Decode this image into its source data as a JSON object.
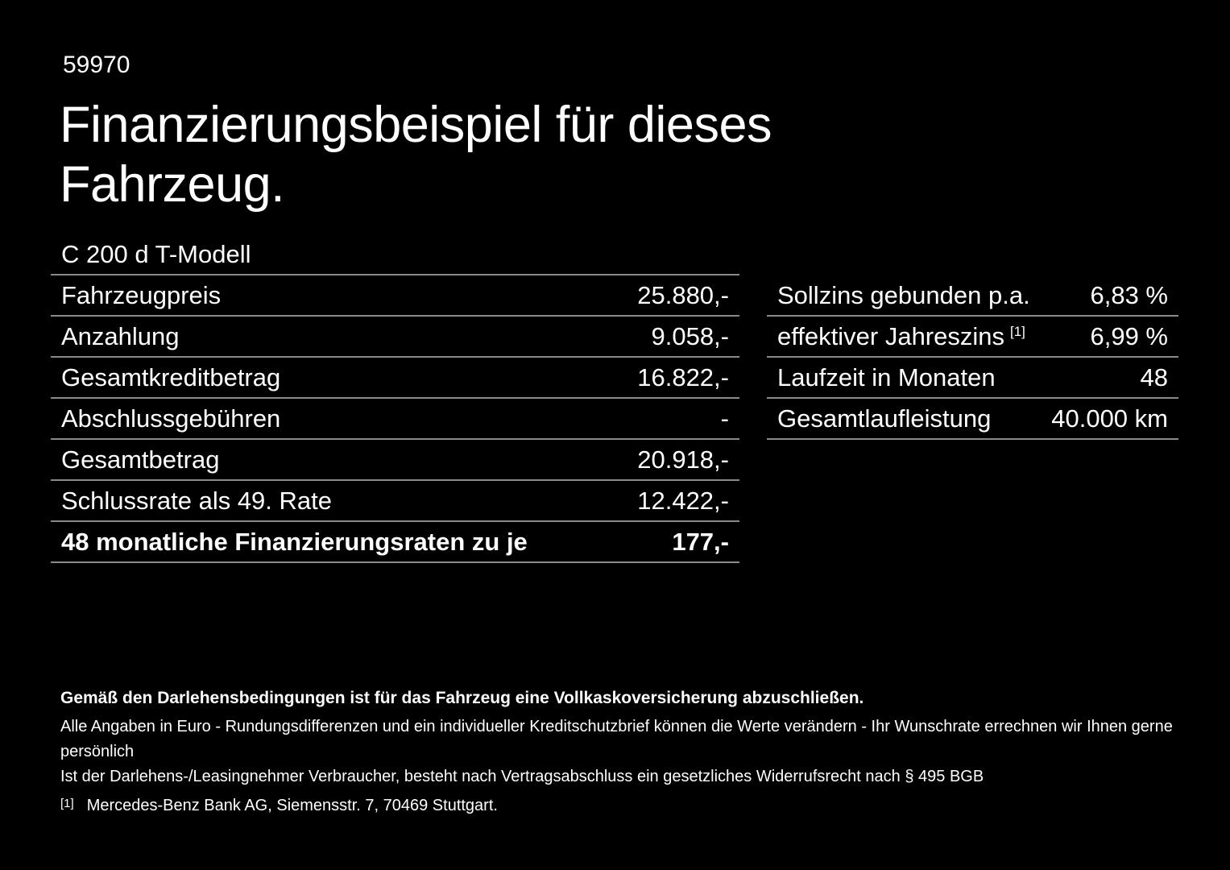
{
  "header": {
    "id_number": "59970",
    "title_line1": "Finanzierungsbeispiel für dieses",
    "title_line2": "Fahrzeug.",
    "model": "C 200 d T-Modell"
  },
  "left_table": {
    "rows": [
      {
        "label": "Fahrzeugpreis",
        "value": "25.880,-"
      },
      {
        "label": "Anzahlung",
        "value": "9.058,-"
      },
      {
        "label": "Gesamtkreditbetrag",
        "value": "16.822,-"
      },
      {
        "label": "Abschlussgebühren",
        "value": "-"
      },
      {
        "label": "Gesamtbetrag",
        "value": "20.918,-"
      },
      {
        "label": "Schlussrate als 49. Rate",
        "value": "12.422,-"
      },
      {
        "label": "48 monatliche Finanzierungsraten zu je",
        "value": "177,-"
      }
    ]
  },
  "right_table": {
    "rows": [
      {
        "label": "Sollzins gebunden p.a.",
        "sup": "",
        "value": "6,83 %"
      },
      {
        "label": "effektiver Jahreszins",
        "sup": "[1]",
        "value": "6,99 %"
      },
      {
        "label": "Laufzeit in Monaten",
        "sup": "",
        "value": "48"
      },
      {
        "label": "Gesamtlaufleistung",
        "sup": "",
        "value": "40.000 km"
      }
    ]
  },
  "footnotes": {
    "bold_note": "Gemäß den Darlehensbedingungen ist für das Fahrzeug eine Vollkaskoversicherung abzuschließen.",
    "note1": "Alle Angaben in Euro - Rundungsdifferenzen und ein individueller Kreditschutzbrief können die Werte verändern - Ihr Wunschrate errechnen wir Ihnen gerne persönlich",
    "note2": "Ist der Darlehens-/Leasingnehmer Verbraucher, besteht nach Vertragsabschluss ein gesetzliches Widerrufsrecht nach § 495 BGB",
    "ref_marker": "[1]",
    "ref_text": "Mercedes-Benz Bank AG, Siemensstr. 7, 70469 Stuttgart."
  },
  "colors": {
    "background": "#000000",
    "text": "#ffffff",
    "divider": "#8a8a8a"
  }
}
